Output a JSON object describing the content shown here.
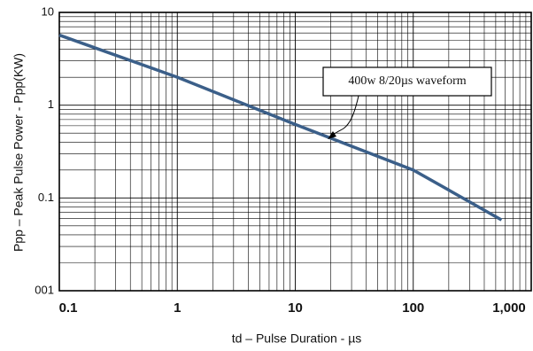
{
  "chart_data": {
    "type": "line",
    "x_label": "td  –  Pulse Duration  - µs",
    "y_label": "Ppp  –  Peak Pulse Power - Ppp(KW)",
    "annotation": "400w 8/20µs waveform",
    "xscale": "log",
    "yscale": "log",
    "grid": true,
    "xlim": [
      0.1,
      1000
    ],
    "ylim": [
      0.01,
      10
    ],
    "xticks": [
      0.1,
      1,
      10,
      100,
      {
        "value": 1000,
        "label": "1,000"
      }
    ],
    "yticks": [
      {
        "value": 0.01,
        "label": "001"
      },
      0.1,
      1,
      10
    ],
    "x": [
      0.1,
      1,
      10,
      100,
      560
    ],
    "series": [
      {
        "color": "#3b5f89",
        "values": [
          5.7,
          2,
          0.62,
          0.2,
          0.058
        ]
      }
    ]
  }
}
